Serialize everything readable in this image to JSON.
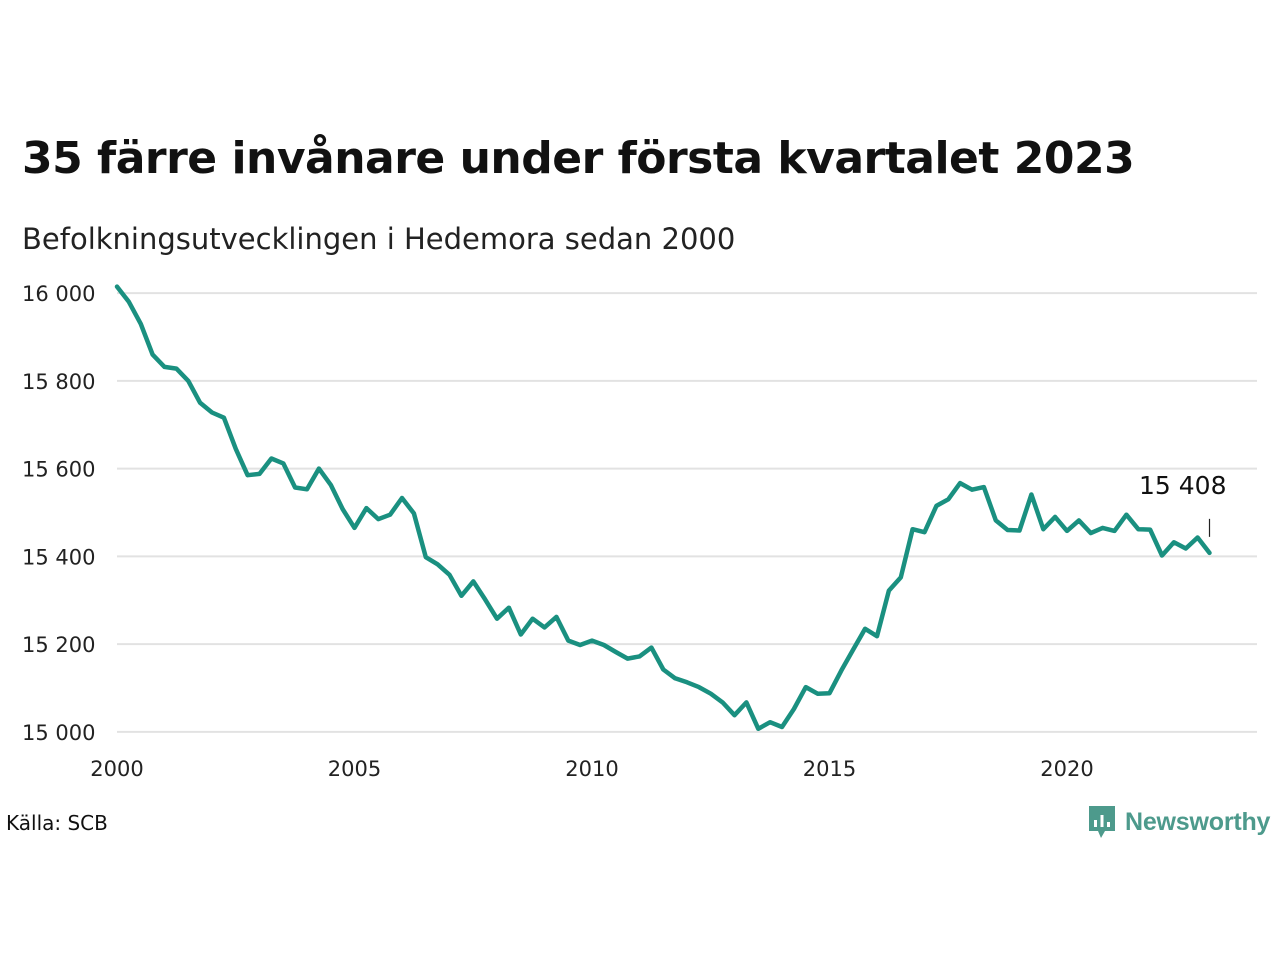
{
  "chart_data": {
    "type": "line",
    "title": "35 färre invånare under första kvartalet 2023",
    "subtitle": "Befolkningsutvecklingen i Hedemora sedan 2000",
    "xlabel": "",
    "ylabel": "",
    "x_ticks": [
      2000,
      2005,
      2010,
      2015,
      2020
    ],
    "y_ticks": [
      15000,
      15200,
      15400,
      15600,
      15800,
      16000
    ],
    "y_tick_labels": [
      "15 000",
      "15 200",
      "15 400",
      "15 600",
      "15 800",
      "16 000"
    ],
    "xlim": [
      2000,
      2024
    ],
    "ylim": [
      14970,
      16030
    ],
    "grid": "horizontal",
    "line_color": "#1a9080",
    "series": [
      {
        "values": [
          16015,
          15980,
          15930,
          15860,
          15832,
          15828,
          15800,
          15750,
          15728,
          15716,
          15645,
          15585,
          15588,
          15623,
          15612,
          15557,
          15553,
          15600,
          15563,
          15508,
          15465,
          15510,
          15485,
          15495,
          15533,
          15498,
          15398,
          15382,
          15358,
          15310,
          15343,
          15302,
          15258,
          15283,
          15222,
          15258,
          15238,
          15262,
          15208,
          15198,
          15208,
          15198,
          15182,
          15167,
          15172,
          15192,
          15142,
          15122,
          15113,
          15102,
          15087,
          15067,
          15038,
          15067,
          15007,
          15022,
          15011,
          15052,
          15102,
          15087,
          15088,
          15140,
          15188,
          15235,
          15218,
          15322,
          15352,
          15462,
          15455,
          15515,
          15530,
          15567,
          15552,
          15558,
          15482,
          15460,
          15459,
          15541,
          15462,
          15490,
          15458,
          15482,
          15453,
          15465,
          15458,
          15495,
          15462,
          15461,
          15402,
          15432,
          15418,
          15443,
          15408
        ]
      }
    ],
    "x_start": 2000.0,
    "x_step": 0.25,
    "annotation": {
      "label": "15 408",
      "value": 15408
    }
  },
  "footer": {
    "source": "Källa: SCB",
    "brand": "Newsworthy",
    "brand_color": "#4d9a8c"
  }
}
